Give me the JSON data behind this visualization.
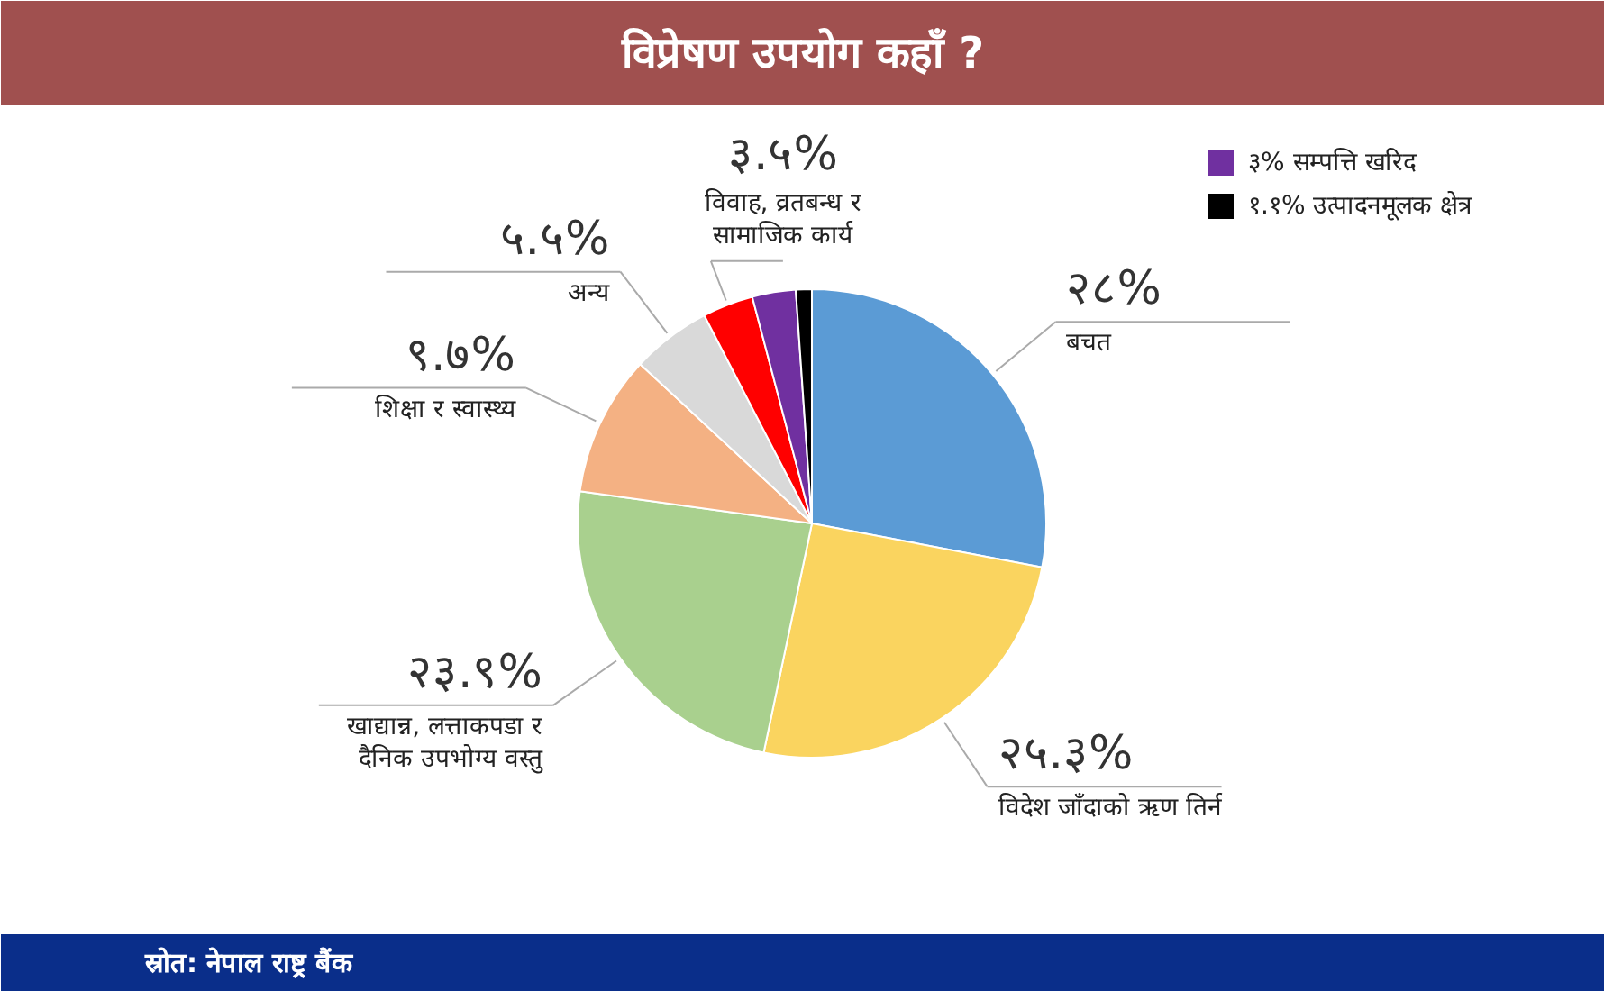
{
  "chart_data": {
    "type": "pie",
    "title": "विप्रेषण उपयोग कहाँ ?",
    "categories": [
      "बचत",
      "विदेश जाँदाको ऋण तिर्न",
      "खाद्यान्न, लत्ताकपडा र\nदैनिक उपभोग्य वस्तु",
      "शिक्षा र स्वास्थ्य",
      "अन्य",
      "विवाह, व्रतबन्ध र\nसामाजिक कार्य",
      "सम्पत्ति खरिद",
      "उत्पादनमूलक क्षेत्र"
    ],
    "values": [
      28,
      25.3,
      23.9,
      9.7,
      5.5,
      3.5,
      3,
      1.1
    ],
    "value_labels": [
      "२८%",
      "२५.३%",
      "२३.९%",
      "९.७%",
      "५.५%",
      "३.५%",
      "३%",
      "१.१%"
    ],
    "colors": [
      "#5b9bd5",
      "#fad45f",
      "#a9d08e",
      "#f4b183",
      "#d9d9d9",
      "#ff0000",
      "#7030a0",
      "#000000"
    ],
    "legend": "top right",
    "annotations": [
      "स्रोत: नेपाल राष्ट्र बैंक"
    ]
  }
}
